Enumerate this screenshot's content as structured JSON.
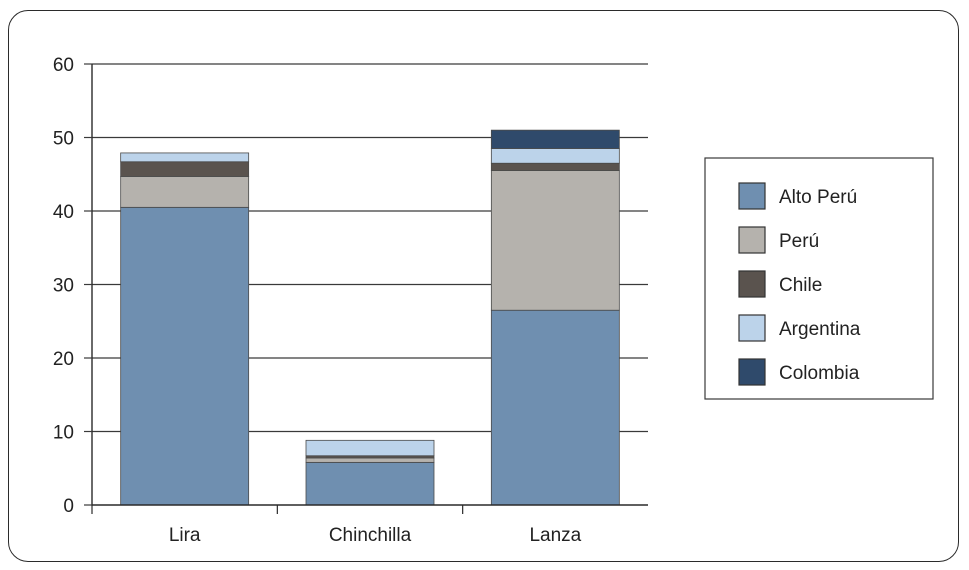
{
  "chart_data": {
    "type": "bar",
    "stacked": true,
    "title": "",
    "xlabel": "",
    "ylabel": "",
    "categories": [
      "Lira",
      "Chinchilla",
      "Lanza"
    ],
    "ylim": [
      0,
      60
    ],
    "yticks": [
      "0",
      "10",
      "20",
      "30",
      "40",
      "50",
      "60"
    ],
    "grid": true,
    "legend_position": "right",
    "series": [
      {
        "name": "Alto Perú",
        "color": "#6f8fb0",
        "values": [
          40.5,
          5.8,
          26.5
        ]
      },
      {
        "name": "Perú",
        "color": "#b5b2ad",
        "values": [
          4.2,
          0.6,
          19.0
        ]
      },
      {
        "name": "Chile",
        "color": "#5a534e",
        "values": [
          2.0,
          0.3,
          1.0
        ]
      },
      {
        "name": "Argentina",
        "color": "#bcd3ea",
        "values": [
          1.2,
          2.1,
          2.0
        ]
      },
      {
        "name": "Colombia",
        "color": "#2f4a6b",
        "values": [
          0.0,
          0.0,
          2.5
        ]
      }
    ]
  }
}
